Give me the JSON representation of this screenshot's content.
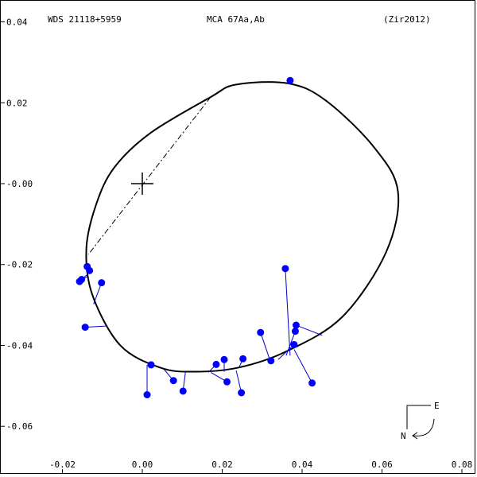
{
  "header": {
    "wds": "WDS 21118+5959",
    "name": "MCA  67Aa,Ab",
    "ref": "(Zir2012)"
  },
  "compass": {
    "east": "E",
    "north": "N"
  },
  "chart_data": {
    "type": "scatter",
    "title": "",
    "xlabel": "",
    "ylabel": "",
    "xlim": [
      -0.03,
      0.08
    ],
    "ylim": [
      -0.07,
      0.045
    ],
    "grid": false,
    "x_ticks": [
      -0.02,
      0.0,
      0.02,
      0.04,
      0.06,
      0.08
    ],
    "x_tick_labels": [
      "-0.02",
      "0.00",
      "0.02",
      "0.04",
      "0.06",
      "0.08"
    ],
    "y_ticks": [
      0.04,
      0.02,
      0.0,
      -0.02,
      -0.04,
      -0.06
    ],
    "y_tick_labels": [
      "0.04",
      "0.02",
      "-0.00",
      "-0.02",
      "-0.04",
      "-0.06"
    ],
    "primary": [
      0.0,
      0.0
    ],
    "colors": {
      "points": "#0000ff",
      "residuals": "#0000cc",
      "orbit": "#000000"
    },
    "orbit": {
      "points": [
        [
          0.0171,
          0.0214
        ],
        [
          0.0235,
          0.0245
        ],
        [
          0.0365,
          0.0248
        ],
        [
          0.046,
          0.0205
        ],
        [
          0.058,
          0.009
        ],
        [
          0.064,
          -0.002
        ],
        [
          0.061,
          -0.017
        ],
        [
          0.05,
          -0.033
        ],
        [
          0.036,
          -0.0415
        ],
        [
          0.024,
          -0.0455
        ],
        [
          0.013,
          -0.0465
        ],
        [
          0.0045,
          -0.0455
        ],
        [
          -0.0055,
          -0.04
        ],
        [
          -0.0125,
          -0.0275
        ],
        [
          -0.014,
          -0.016
        ],
        [
          -0.0115,
          -0.005
        ],
        [
          -0.007,
          0.004
        ],
        [
          0.002,
          0.0125
        ],
        [
          0.0171,
          0.0214
        ]
      ]
    },
    "line_of_nodes": [
      [
        0.0171,
        0.0214
      ],
      [
        -0.0135,
        -0.0175
      ]
    ],
    "observations": [
      {
        "x": 0.037,
        "y": 0.0255,
        "ox": 0.037,
        "oy": 0.0248
      },
      {
        "x": 0.0358,
        "y": -0.021,
        "ox": 0.037,
        "oy": -0.0425
      },
      {
        "x": 0.0385,
        "y": -0.035,
        "ox": 0.045,
        "oy": -0.0375
      },
      {
        "x": 0.0383,
        "y": -0.0365,
        "ox": 0.036,
        "oy": -0.0425
      },
      {
        "x": 0.038,
        "y": -0.0398,
        "ox": 0.034,
        "oy": -0.0435
      },
      {
        "x": 0.0425,
        "y": -0.0493,
        "ox": 0.038,
        "oy": -0.041
      },
      {
        "x": 0.0296,
        "y": -0.0368,
        "ox": 0.032,
        "oy": -0.0438
      },
      {
        "x": 0.0322,
        "y": -0.0438,
        "ox": 0.0322,
        "oy": -0.0438
      },
      {
        "x": 0.0252,
        "y": -0.0433,
        "ox": 0.0242,
        "oy": -0.0455
      },
      {
        "x": 0.0248,
        "y": -0.0517,
        "ox": 0.0235,
        "oy": -0.0462
      },
      {
        "x": 0.0205,
        "y": -0.0435,
        "ox": 0.0205,
        "oy": -0.0465
      },
      {
        "x": 0.0185,
        "y": -0.0447,
        "ox": 0.0165,
        "oy": -0.0467
      },
      {
        "x": 0.0212,
        "y": -0.049,
        "ox": 0.0172,
        "oy": -0.0467
      },
      {
        "x": 0.0102,
        "y": -0.0513,
        "ox": 0.0108,
        "oy": -0.0466
      },
      {
        "x": 0.0078,
        "y": -0.0487,
        "ox": 0.0055,
        "oy": -0.046
      },
      {
        "x": 0.0022,
        "y": -0.0448,
        "ox": 0.0022,
        "oy": -0.0448
      },
      {
        "x": 0.0012,
        "y": -0.0522,
        "ox": 0.0012,
        "oy": -0.0448
      },
      {
        "x": -0.0143,
        "y": -0.0355,
        "ox": -0.009,
        "oy": -0.0352
      },
      {
        "x": -0.0102,
        "y": -0.0245,
        "ox": -0.0122,
        "oy": -0.0298
      },
      {
        "x": -0.0152,
        "y": -0.0237,
        "ox": -0.0138,
        "oy": -0.0225
      },
      {
        "x": -0.0157,
        "y": -0.0242,
        "ox": -0.0138,
        "oy": -0.023
      },
      {
        "x": -0.0132,
        "y": -0.0215,
        "ox": -0.0135,
        "oy": -0.0205
      },
      {
        "x": -0.0138,
        "y": -0.0205,
        "ox": -0.0138,
        "oy": -0.0205
      }
    ]
  }
}
